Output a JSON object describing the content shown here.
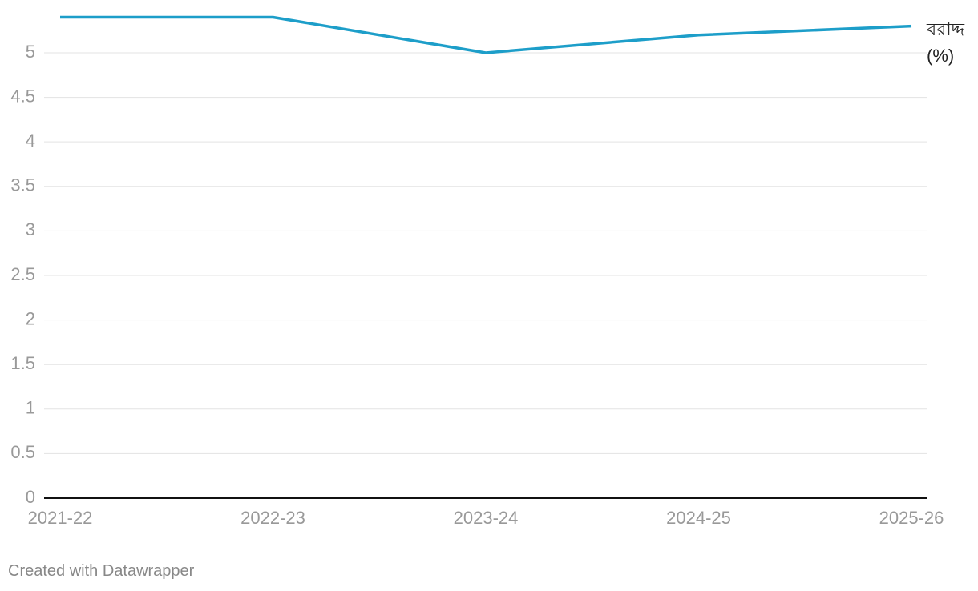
{
  "chart_data": {
    "type": "line",
    "categories": [
      "2021-22",
      "2022-23",
      "2023-24",
      "2024-25",
      "2025-26"
    ],
    "series": [
      {
        "name": "বরাদ্দ (%)",
        "color": "#1d9ec9",
        "values": [
          5.4,
          5.4,
          5.0,
          5.2,
          5.3
        ]
      }
    ],
    "ylim": [
      0,
      5.4
    ],
    "yticks": [
      0,
      0.5,
      1,
      1.5,
      2,
      2.5,
      3,
      3.5,
      4,
      4.5,
      5
    ],
    "grid": true
  },
  "footer": "Created with Datawrapper"
}
